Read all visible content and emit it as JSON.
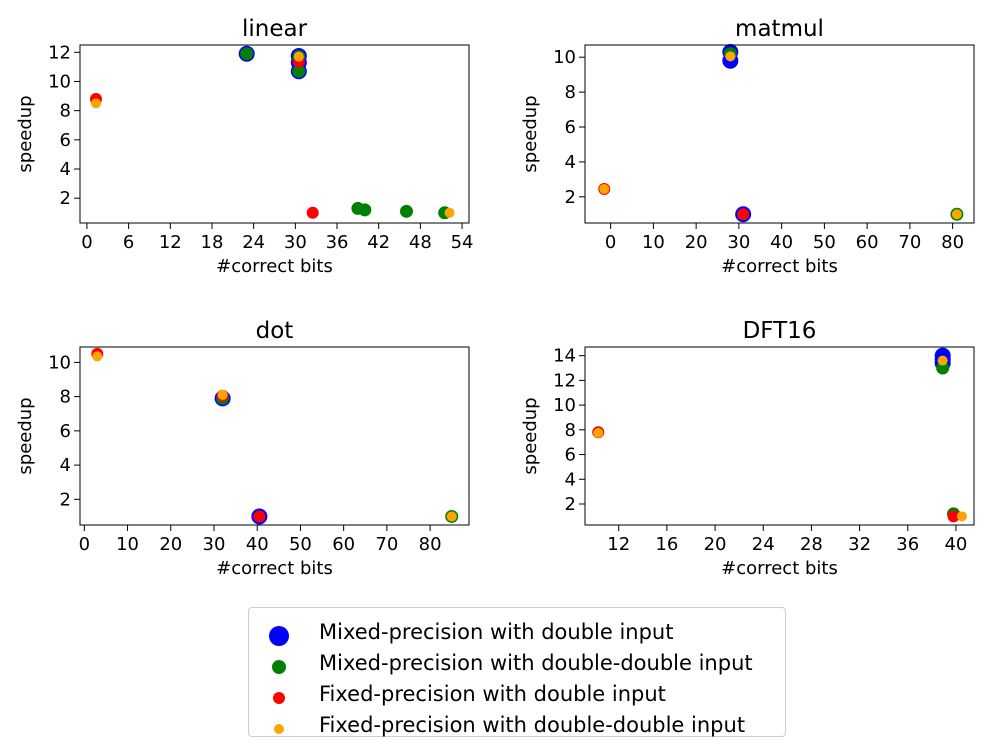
{
  "series_meta": [
    {
      "key": "mixed_double",
      "name": "Mixed-precision with double input",
      "color": "#0000ff"
    },
    {
      "key": "mixed_dd",
      "name": "Mixed-precision with double-double input",
      "color": "#008000"
    },
    {
      "key": "fixed_double",
      "name": "Fixed-precision with double input",
      "color": "#ff0000"
    },
    {
      "key": "fixed_dd",
      "name": "Fixed-precision with double-double input",
      "color": "#ffa500"
    }
  ],
  "chart_data": [
    {
      "type": "scatter",
      "title": "linear",
      "xlabel": "#correct bits",
      "ylabel": "speedup",
      "xlim": [
        -1,
        55
      ],
      "ylim": [
        0.3,
        12.5
      ],
      "xticks": [
        0,
        6,
        12,
        18,
        24,
        30,
        36,
        42,
        48,
        54
      ],
      "yticks": [
        2,
        4,
        6,
        8,
        10,
        12
      ],
      "series": [
        {
          "name": "Mixed-precision with double input",
          "points": [
            [
              23,
              11.9
            ],
            [
              30.5,
              11.75
            ],
            [
              30.5,
              11.3
            ],
            [
              30.5,
              10.7
            ]
          ]
        },
        {
          "name": "Mixed-precision with double-double input",
          "points": [
            [
              23,
              11.9
            ],
            [
              30.5,
              11.7
            ],
            [
              30.5,
              10.7
            ],
            [
              39,
              1.3
            ],
            [
              40,
              1.2
            ],
            [
              46,
              1.1
            ],
            [
              51.5,
              1.0
            ]
          ]
        },
        {
          "name": "Fixed-precision with double input",
          "points": [
            [
              1.3,
              8.8
            ],
            [
              30.5,
              11.35
            ],
            [
              32.5,
              1.0
            ]
          ]
        },
        {
          "name": "Fixed-precision with double-double input",
          "points": [
            [
              1.3,
              8.5
            ],
            [
              30.5,
              11.7
            ],
            [
              52.2,
              1.0
            ]
          ]
        }
      ]
    },
    {
      "type": "scatter",
      "title": "matmul",
      "xlabel": "#correct bits",
      "ylabel": "speedup",
      "xlim": [
        -6,
        85
      ],
      "ylim": [
        0.5,
        10.7
      ],
      "xticks": [
        0,
        10,
        20,
        30,
        40,
        50,
        60,
        70,
        80
      ],
      "yticks": [
        2,
        4,
        6,
        8,
        10
      ],
      "series": [
        {
          "name": "Mixed-precision with double input",
          "points": [
            [
              28,
              10.3
            ],
            [
              28,
              9.8
            ],
            [
              31,
              1.0
            ]
          ]
        },
        {
          "name": "Mixed-precision with double-double input",
          "points": [
            [
              28,
              10.2
            ],
            [
              81,
              1.0
            ]
          ]
        },
        {
          "name": "Fixed-precision with double input",
          "points": [
            [
              -1.5,
              2.45
            ],
            [
              31,
              1.0
            ]
          ]
        },
        {
          "name": "Fixed-precision with double-double input",
          "points": [
            [
              -1.5,
              2.45
            ],
            [
              28,
              10.05
            ],
            [
              81,
              1.0
            ]
          ]
        }
      ]
    },
    {
      "type": "scatter",
      "title": "dot",
      "xlabel": "#correct bits",
      "ylabel": "speedup",
      "xlim": [
        -1,
        89
      ],
      "ylim": [
        0.5,
        10.9
      ],
      "xticks": [
        0,
        10,
        20,
        30,
        40,
        50,
        60,
        70,
        80
      ],
      "yticks": [
        2,
        4,
        6,
        8,
        10
      ],
      "series": [
        {
          "name": "Mixed-precision with double input",
          "points": [
            [
              32,
              7.9
            ],
            [
              40.5,
              1.0
            ]
          ]
        },
        {
          "name": "Mixed-precision with double-double input",
          "points": [
            [
              32,
              7.9
            ],
            [
              85,
              1.0
            ]
          ]
        },
        {
          "name": "Fixed-precision with double input",
          "points": [
            [
              3,
              10.5
            ],
            [
              32,
              8.05
            ],
            [
              40.5,
              1.0
            ]
          ]
        },
        {
          "name": "Fixed-precision with double-double input",
          "points": [
            [
              3,
              10.35
            ],
            [
              32,
              8.1
            ],
            [
              85,
              1.0
            ]
          ]
        }
      ]
    },
    {
      "type": "scatter",
      "title": "DFT16",
      "xlabel": "#correct bits",
      "ylabel": "speedup",
      "xlim": [
        9.2,
        41.5
      ],
      "ylim": [
        0.3,
        14.7
      ],
      "xticks": [
        12,
        16,
        20,
        24,
        28,
        32,
        36,
        40
      ],
      "yticks": [
        2,
        4,
        6,
        8,
        10,
        12,
        14
      ],
      "series": [
        {
          "name": "Mixed-precision with double input",
          "points": [
            [
              38.9,
              14.0
            ],
            [
              38.9,
              13.7
            ],
            [
              38.9,
              13.4
            ]
          ]
        },
        {
          "name": "Mixed-precision with double-double input",
          "points": [
            [
              38.9,
              13.0
            ],
            [
              39.8,
              1.2
            ]
          ]
        },
        {
          "name": "Fixed-precision with double input",
          "points": [
            [
              10.3,
              7.8
            ],
            [
              39.8,
              1.0
            ]
          ]
        },
        {
          "name": "Fixed-precision with double-double input",
          "points": [
            [
              10.3,
              7.75
            ],
            [
              38.9,
              13.6
            ],
            [
              40.5,
              1.0
            ]
          ]
        }
      ]
    }
  ]
}
